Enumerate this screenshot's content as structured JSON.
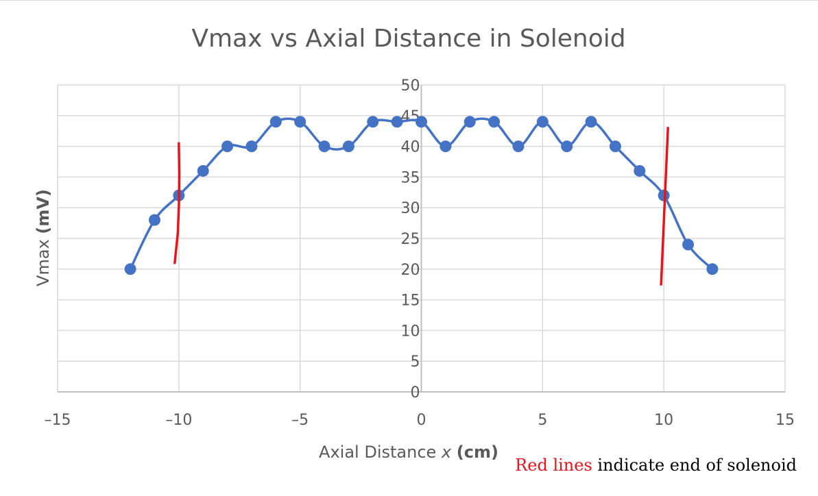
{
  "chart_data": {
    "type": "scatter",
    "title": "Vmax vs Axial Distance in Solenoid",
    "xlabel": {
      "prefix": "Axial Distance ",
      "var": "x",
      "unit": "(cm)"
    },
    "ylabel": {
      "prefix": "Vmax ",
      "unit": "(mV)"
    },
    "xlim": [
      -15,
      15
    ],
    "ylim": [
      0,
      50
    ],
    "x_ticks": [
      -15,
      -10,
      -5,
      0,
      5,
      10,
      15
    ],
    "y_ticks": [
      0,
      5,
      10,
      15,
      20,
      25,
      30,
      35,
      40,
      45,
      50
    ],
    "grid": true,
    "smooth_line": true,
    "series": [
      {
        "color": "#4472c4",
        "x": [
          -12,
          -11,
          -10,
          -9,
          -8,
          -7,
          -6,
          -5,
          -4,
          -3,
          -2,
          -1,
          0,
          1,
          2,
          3,
          4,
          5,
          6,
          7,
          8,
          9,
          10,
          11,
          12
        ],
        "y": [
          20,
          28,
          32,
          36,
          40,
          40,
          44,
          44,
          40,
          40,
          44,
          44,
          44,
          40,
          44,
          44,
          40,
          44,
          40,
          44,
          40,
          36,
          32,
          24,
          20
        ]
      }
    ],
    "annotations": [
      {
        "type": "vertical-marker",
        "color": "#e8141c",
        "x": -10,
        "y_range": [
          21,
          40.5
        ]
      },
      {
        "type": "vertical-marker",
        "color": "#e8141c",
        "x": 10,
        "y_range": [
          17.5,
          43
        ]
      }
    ],
    "note": {
      "highlight": "Red lines",
      "rest": " indicate end of solenoid",
      "highlight_color": "#e8141c"
    }
  }
}
